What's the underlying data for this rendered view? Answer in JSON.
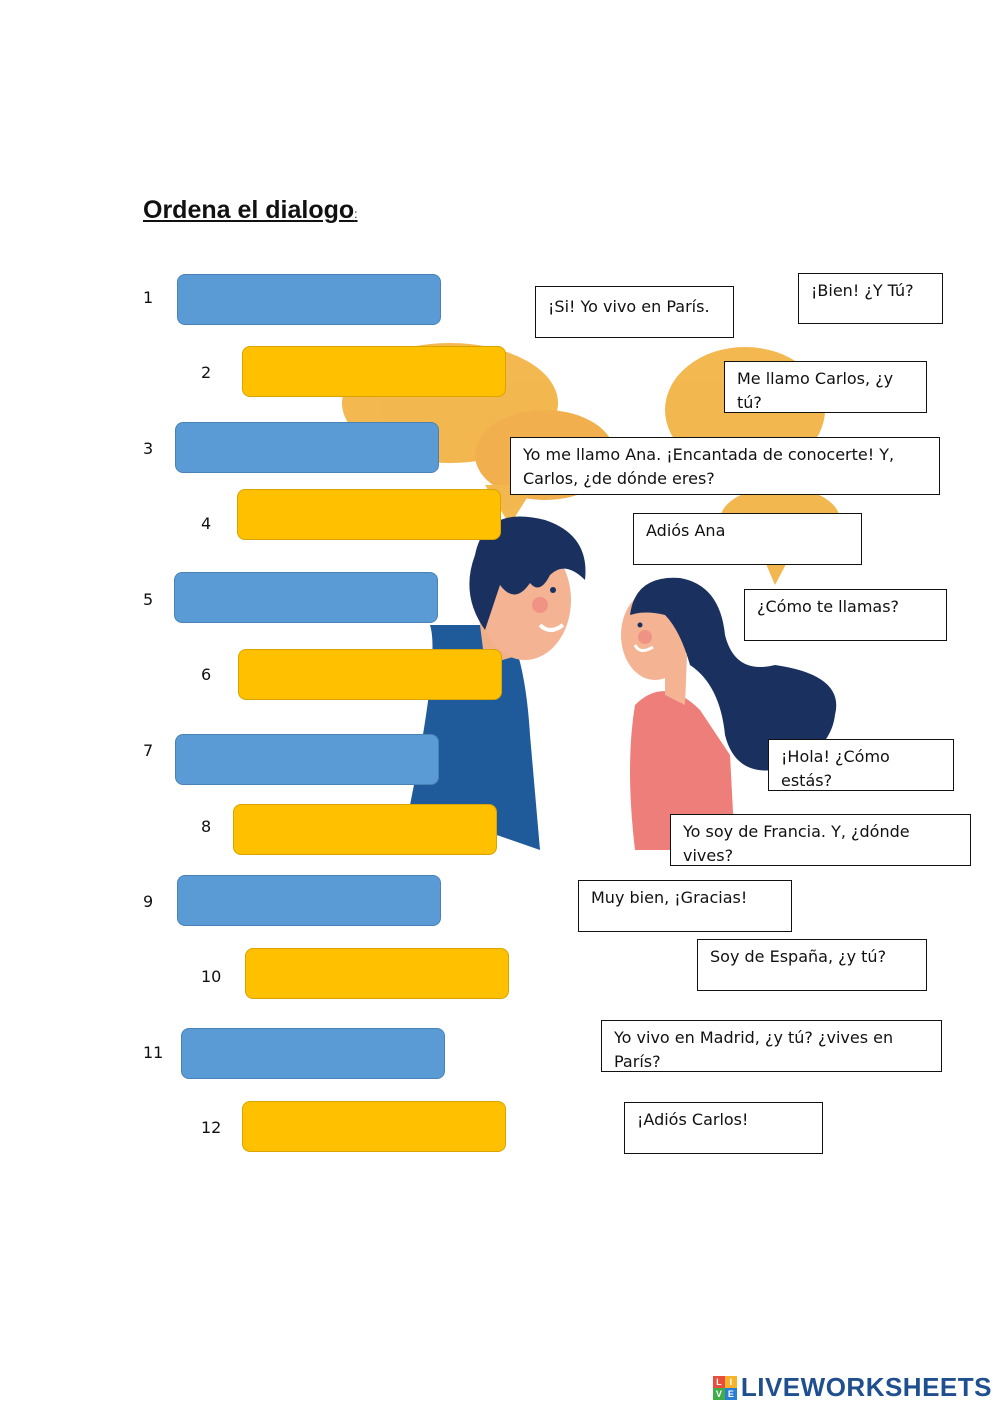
{
  "title": "Ordena el dialogo",
  "title_suffix": ":",
  "rows": [
    {
      "number": "1",
      "color": "blue"
    },
    {
      "number": "2",
      "color": "yellow"
    },
    {
      "number": "3",
      "color": "blue"
    },
    {
      "number": "4",
      "color": "yellow"
    },
    {
      "number": "5",
      "color": "blue"
    },
    {
      "number": "6",
      "color": "yellow"
    },
    {
      "number": "7",
      "color": "blue"
    },
    {
      "number": "8",
      "color": "yellow"
    },
    {
      "number": "9",
      "color": "blue"
    },
    {
      "number": "10",
      "color": "yellow"
    },
    {
      "number": "11",
      "color": "blue"
    },
    {
      "number": "12",
      "color": "yellow"
    }
  ],
  "cards": [
    "¡Si! Yo vivo en París.",
    "¡Bien! ¿Y Tú?",
    "Me llamo Carlos, ¿y tú?",
    "Yo me llamo Ana. ¡Encantada de conocerte! Y, Carlos, ¿de dónde eres?",
    "Adiós Ana",
    "¿Cómo te llamas?",
    "¡Hola! ¿Cómo estás?",
    "Yo soy de Francia. Y, ¿dónde vives?",
    "Muy bien, ¡Gracias!",
    "Soy de España, ¿y tú?",
    "Yo vivo en Madrid, ¿y tú? ¿vives en París?",
    "¡Adiós Carlos!"
  ],
  "brand": {
    "name": "LIVEWORKSHEETS",
    "mark_letters": [
      "L",
      "I",
      "V",
      "E"
    ]
  },
  "colors": {
    "blue_slot": "#5b9bd5",
    "yellow_slot": "#ffc000",
    "bubble": "#f2b03c",
    "brand": "#1f4f8f"
  }
}
